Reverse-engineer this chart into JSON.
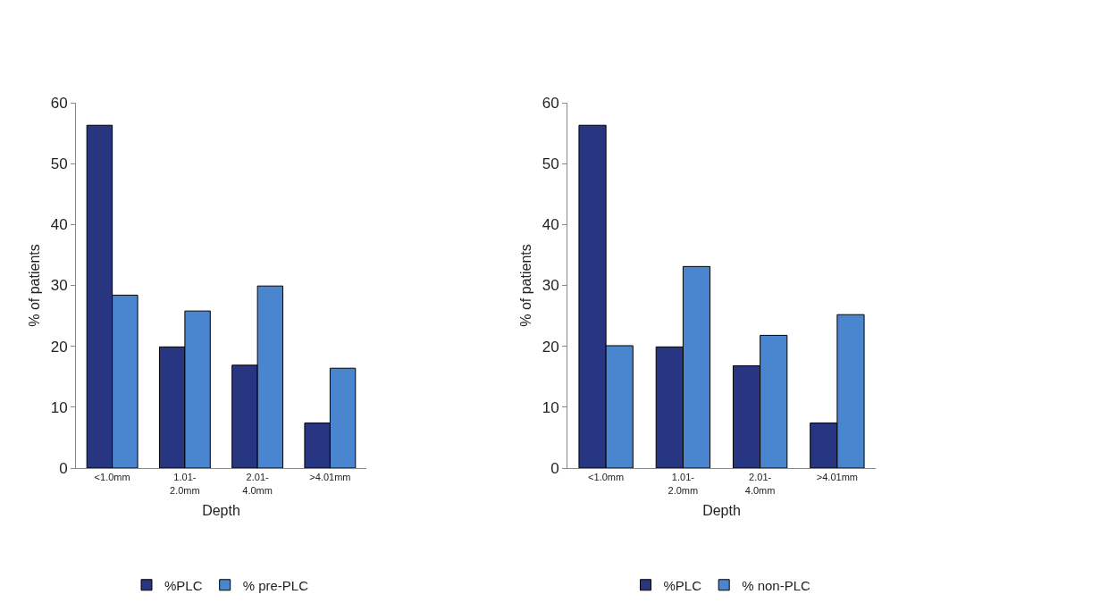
{
  "chart_data": [
    {
      "type": "bar",
      "categories": [
        "<1.0mm",
        "1.01-2.0mm",
        "2.01-4.0mm",
        ">4.01mm"
      ],
      "xlabel": "Depth",
      "ylabel": "% of patients",
      "ylim": [
        0,
        60
      ],
      "yticks": [
        0,
        10,
        20,
        30,
        40,
        50,
        60
      ],
      "grid": false,
      "legend": "bottom",
      "series": [
        {
          "name": "%PLC",
          "color": "#283580",
          "values": [
            56.3,
            19.9,
            16.9,
            7.4
          ]
        },
        {
          "name": "% pre-PLC",
          "color": "#4a86d0",
          "values": [
            28.4,
            25.8,
            29.9,
            16.4
          ]
        }
      ]
    },
    {
      "type": "bar",
      "categories": [
        "<1.0mm",
        "1.01-2.0mm",
        "2.01-4.0mm",
        ">4.01mm"
      ],
      "xlabel": "Depth",
      "ylabel": "% of patients",
      "ylim": [
        0,
        60
      ],
      "yticks": [
        0,
        10,
        20,
        30,
        40,
        50,
        60
      ],
      "grid": false,
      "legend": "bottom",
      "series": [
        {
          "name": "%PLC",
          "color": "#283580",
          "values": [
            56.3,
            19.9,
            16.8,
            7.4
          ]
        },
        {
          "name": "% non-PLC",
          "color": "#4a86d0",
          "values": [
            20.1,
            33.1,
            21.8,
            25.2
          ]
        }
      ]
    }
  ]
}
